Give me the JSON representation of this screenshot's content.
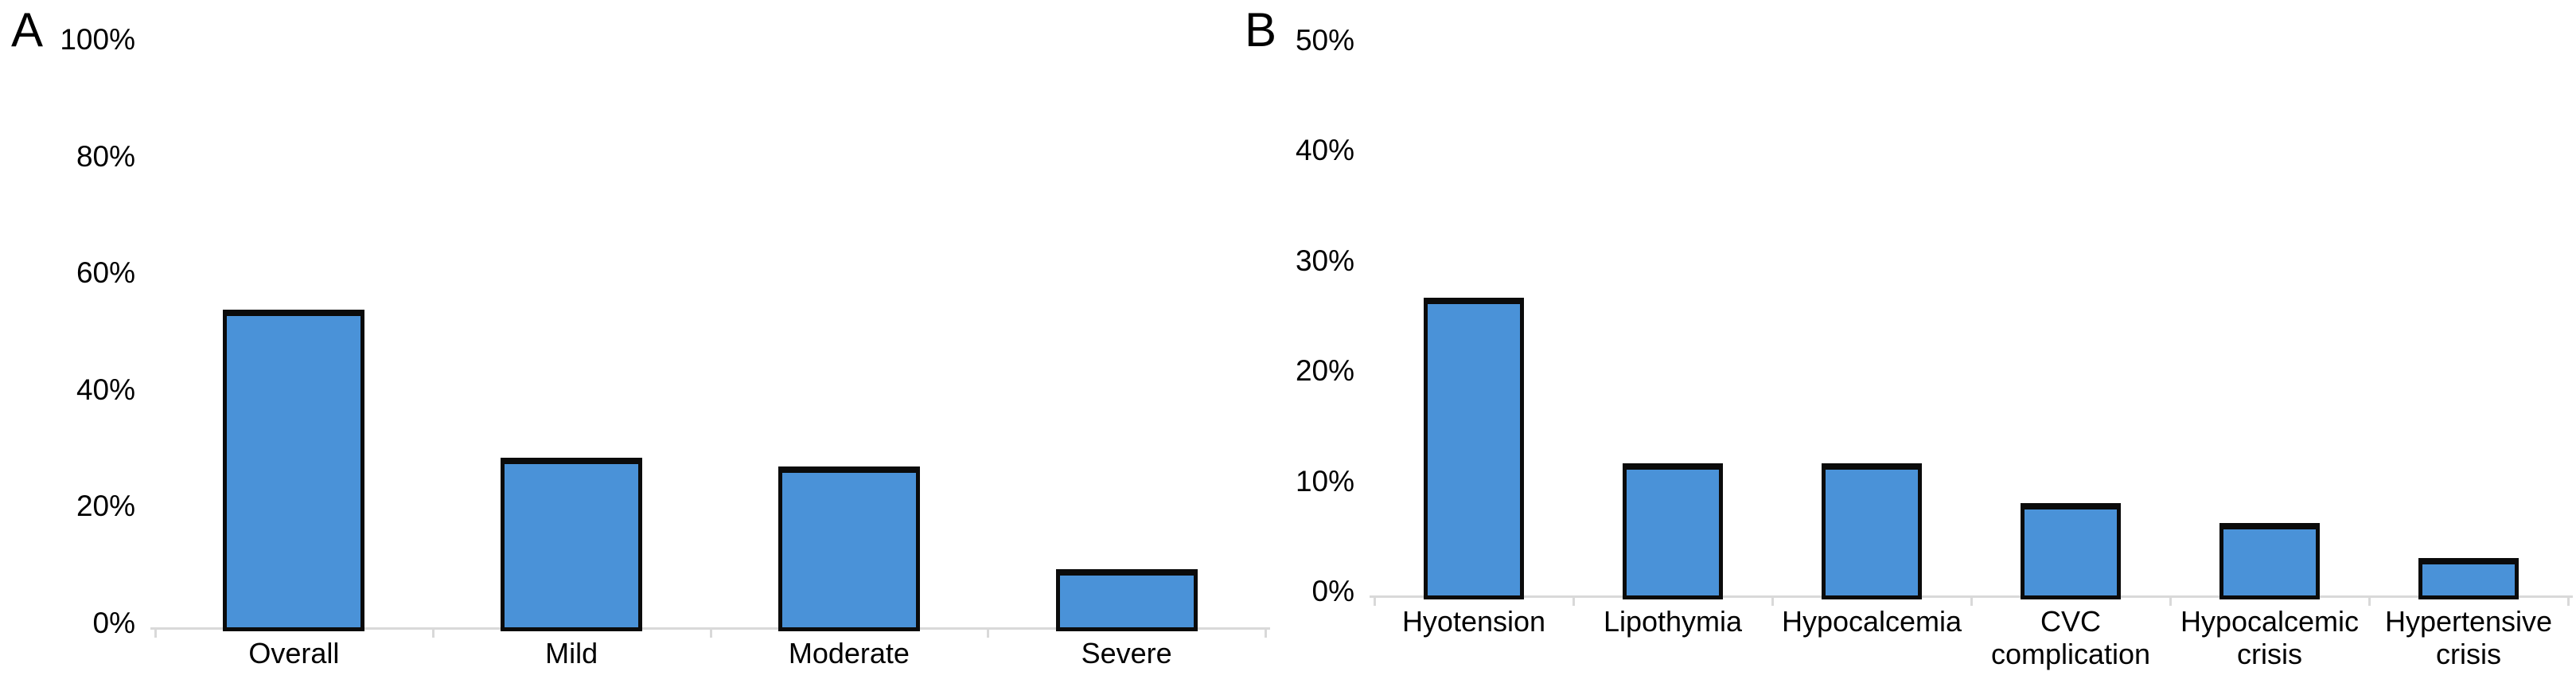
{
  "figure": {
    "background": "#ffffff",
    "panels": [
      "A",
      "B"
    ]
  },
  "chart_data": [
    {
      "panel_label": "A",
      "type": "bar",
      "title": "",
      "xlabel": "",
      "ylabel": "",
      "categories": [
        "Overall",
        "Mild",
        "Moderate",
        "Severe"
      ],
      "values": [
        54.5,
        29,
        27.5,
        10
      ],
      "value_unit": "%",
      "ylim": [
        0,
        100
      ],
      "yticks": [
        0,
        20,
        40,
        60,
        80,
        100
      ],
      "ytick_labels": [
        "0%",
        "20%",
        "40%",
        "60%",
        "80%",
        "100%"
      ],
      "grid": false,
      "legend": "none",
      "bar_fill": "#4a92d8",
      "bar_border": "#0b0b0b",
      "axis_color": "#d9d9d9",
      "text_color": "#000000"
    },
    {
      "panel_label": "B",
      "type": "bar",
      "title": "",
      "xlabel": "",
      "ylabel": "",
      "categories": [
        "Hyotension",
        "Lipothymia",
        "Hypocalcemia",
        "CVC complication",
        "Hypocalcemic crisis",
        "Hypertensive crisis"
      ],
      "values": [
        27,
        12,
        12,
        8.4,
        6.6,
        3.4
      ],
      "value_unit": "%",
      "ylim": [
        0,
        50
      ],
      "yticks": [
        0,
        10,
        20,
        30,
        40,
        50
      ],
      "ytick_labels": [
        "0%",
        "10%",
        "20%",
        "30%",
        "40%",
        "50%"
      ],
      "grid": false,
      "legend": "none",
      "bar_fill": "#4a92d8",
      "bar_border": "#0b0b0b",
      "axis_color": "#d9d9d9",
      "text_color": "#000000"
    }
  ]
}
